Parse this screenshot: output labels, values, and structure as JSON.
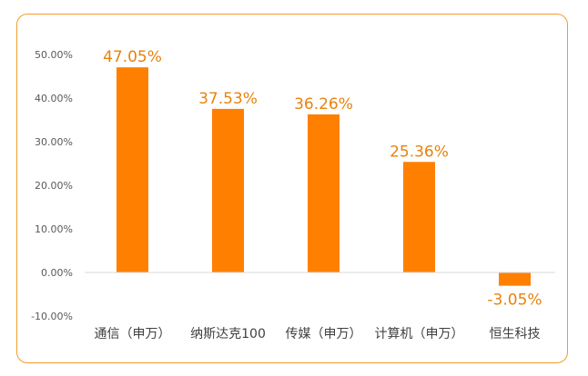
{
  "chart_data": {
    "type": "bar",
    "title": "",
    "xlabel": "",
    "ylabel": "",
    "categories": [
      "通信（申万）",
      "纳斯达克100",
      "传媒（申万）",
      "计算机（申万）",
      "恒生科技"
    ],
    "values": [
      47.05,
      37.53,
      36.26,
      25.36,
      -3.05
    ],
    "data_labels": [
      "47.05%",
      "37.53%",
      "36.26%",
      "25.36%",
      "-3.05%"
    ],
    "ylim": [
      -10,
      50
    ],
    "yticks": [
      50,
      40,
      30,
      20,
      10,
      0,
      -10
    ],
    "ytick_labels": [
      "50.00%",
      "40.00%",
      "30.00%",
      "20.00%",
      "10.00%",
      "0.00%",
      "-10.00%"
    ],
    "grid": false,
    "legend": "none",
    "colors": {
      "bar": "#ff8000",
      "data_label": "#e8820c",
      "tick_label": "#595959",
      "category_label": "#404040",
      "axis_line": "#d9d9d9",
      "frame": "#f39c2a"
    }
  }
}
